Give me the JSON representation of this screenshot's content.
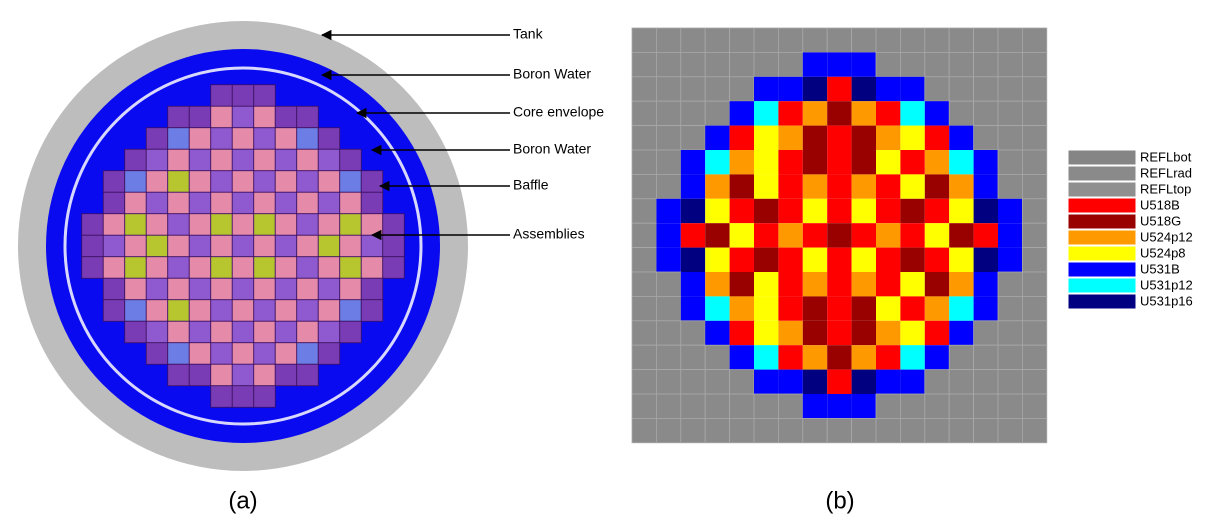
{
  "panel_a": {
    "labels": [
      "Tank",
      "Boron Water",
      "Core envelope",
      "Boron Water",
      "Baffle",
      "Assemblies"
    ],
    "caption": "(a)"
  },
  "panel_b": {
    "caption": "(b)",
    "legend": [
      {
        "name": "REFLbot",
        "color": "#858585"
      },
      {
        "name": "REFLrad",
        "color": "#8a8a8a"
      },
      {
        "name": "REFLtop",
        "color": "#8f8f8f"
      },
      {
        "name": "U518B",
        "color": "#ff0000"
      },
      {
        "name": "U518G",
        "color": "#990000"
      },
      {
        "name": "U524p12",
        "color": "#ff9900"
      },
      {
        "name": "U524p8",
        "color": "#ffff00"
      },
      {
        "name": "U531B",
        "color": "#0000ff"
      },
      {
        "name": "U531p12",
        "color": "#00ffff"
      },
      {
        "name": "U531p16",
        "color": "#000080"
      }
    ],
    "core_map": [
      "11111111111111111",
      "11111117771111111",
      "11111779397711111",
      "11117835453871111",
      "11173654345637111",
      "11785634346358711",
      "11754635353645711",
      "17963436363436971",
      "17346353435364371",
      "17963436363436971",
      "11754635353645711",
      "11785634346358711",
      "11173654345637111",
      "11117835453871111",
      "11111779397711111",
      "11111117771111111",
      "11111111111111111"
    ]
  }
}
